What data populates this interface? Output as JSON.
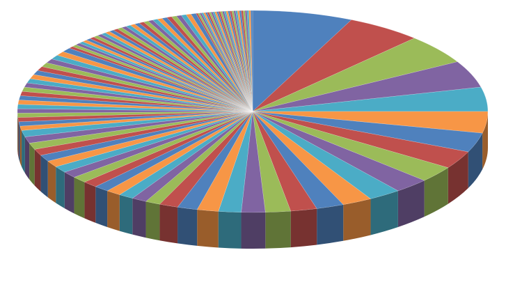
{
  "chart_data": {
    "type": "pie",
    "values": [
      8,
      6,
      5.5,
      5,
      4.5,
      4,
      3.6,
      3.3,
      3,
      2.8,
      2.6,
      2.4,
      2.2,
      2.1,
      2,
      1.9,
      1.8,
      1.7,
      1.6,
      1.5,
      1.2,
      1.2,
      1.2,
      1.2,
      1.2,
      1.2,
      1.2,
      1.2,
      1.2,
      1.2,
      1.2,
      1.2,
      1.2,
      1.2,
      1.2,
      0.8,
      0.8,
      0.8,
      0.8,
      0.8,
      0.8,
      0.8,
      0.8,
      0.8,
      0.8,
      0.8,
      0.8,
      0.8,
      0.8,
      0.8,
      0.8,
      0.8,
      0.8,
      0.8,
      0.8,
      0.4,
      0.4,
      0.4,
      0.4,
      0.4,
      0.4,
      0.4,
      0.4,
      0.4,
      0.4,
      0.4,
      0.4,
      0.4,
      0.4,
      0.4,
      0.4,
      0.4,
      0.4,
      0.4,
      0.4,
      0.4,
      0.4,
      0.4,
      0.4,
      0.4,
      0.4,
      0.4,
      0.4,
      0.4,
      0.4,
      0.15,
      0.15,
      0.15,
      0.15,
      0.15,
      0.15,
      0.15,
      0.15,
      0.15,
      0.15,
      0.15,
      0.15,
      0.15,
      0.15,
      0.15,
      0.15,
      0.15,
      0.15,
      0.15,
      0.15,
      0.15,
      0.15,
      0.15,
      0.15,
      0.15,
      0.15,
      0.15,
      0.15,
      0.15,
      0.15
    ],
    "colors": [
      "#4f81bd",
      "#c0504d",
      "#9bbb59",
      "#8064a2",
      "#4bacc6",
      "#f79646"
    ],
    "start_angle": 90,
    "direction": "clockwise",
    "three_d": true
  }
}
